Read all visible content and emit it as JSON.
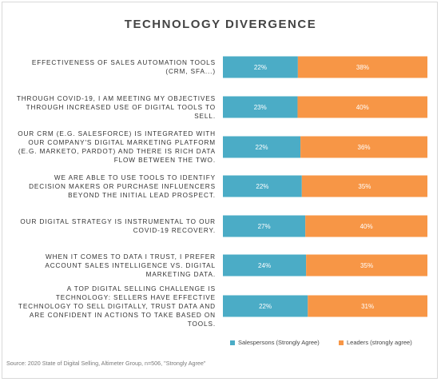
{
  "chart_data": {
    "type": "bar",
    "stacked": true,
    "orientation": "horizontal",
    "title": "TECHNOLOGY DIVERGENCE",
    "categories": [
      "EFFECTIVENESS OF SALES AUTOMATION TOOLS (CRM, SFA...)",
      "THROUGH COVID-19, I AM MEETING MY OBJECTIVES THROUGH INCREASED USE OF DIGITAL TOOLS TO SELL.",
      "OUR CRM (E.G. SALESFORCE) IS INTEGRATED WITH OUR COMPANY'S DIGITAL MARKETING PLATFORM (E.G. MARKETO, PARDOT) AND THERE IS RICH DATA FLOW BETWEEN THE TWO.",
      "WE ARE ABLE TO USE TOOLS TO IDENTIFY DECISION MAKERS OR PURCHASE INFLUENCERS BEYOND THE INITIAL LEAD PROSPECT.",
      "OUR DIGITAL STRATEGY IS INSTRUMENTAL TO OUR COVID-19 RECOVERY.",
      "WHEN IT COMES TO DATA I TRUST, I PREFER ACCOUNT SALES INTELLIGENCE VS. DIGITAL MARKETING DATA.",
      "A TOP DIGITAL SELLING CHALLENGE IS TECHNOLOGY: SELLERS HAVE EFFECTIVE TECHNOLOGY TO SELL DIGITALLY, TRUST DATA AND ARE CONFIDENT IN ACTIONS TO TAKE BASED ON TOOLS."
    ],
    "series": [
      {
        "name": "Salespersons (Strongly Agree)",
        "color": "#4bacc6",
        "values": [
          22,
          23,
          22,
          22,
          27,
          24,
          22
        ],
        "labels": [
          "22%",
          "23%",
          "22%",
          "22%",
          "27%",
          "24%",
          "22%"
        ]
      },
      {
        "name": "Leaders (strongly agree)",
        "color": "#f79646",
        "values": [
          38,
          40,
          36,
          35,
          40,
          35,
          31
        ],
        "labels": [
          "38%",
          "40%",
          "36%",
          "35%",
          "40%",
          "35%",
          "31%"
        ]
      }
    ],
    "normalized": true,
    "legend": "bottom",
    "grid": false
  },
  "source": "Source: 2020 State of Digital Selling, Altimeter Group, n=506, \"Strongly Agree\""
}
